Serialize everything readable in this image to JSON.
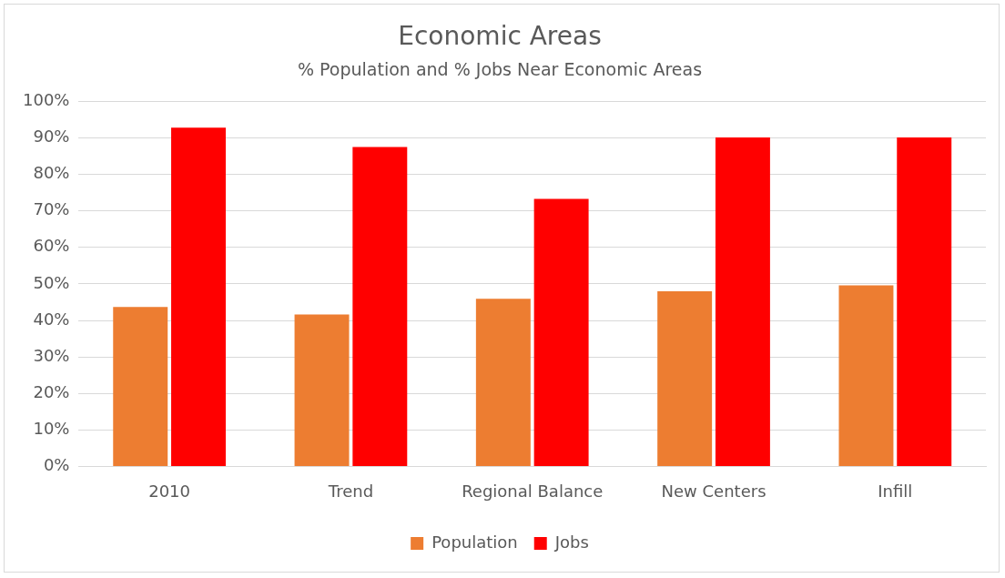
{
  "chart_data": {
    "type": "bar",
    "title": "Economic Areas",
    "subtitle": "% Population and % Jobs Near Economic Areas",
    "categories": [
      "2010",
      "Trend",
      "Regional Balance",
      "New Centers",
      "Infill"
    ],
    "series": [
      {
        "name": "Population",
        "color": "#ed7d31",
        "values": [
          43.7,
          41.6,
          45.9,
          48,
          49.6
        ]
      },
      {
        "name": "Jobs",
        "color": "#ff0000",
        "values": [
          92.8,
          87.5,
          73.3,
          90.1,
          90.1
        ]
      }
    ],
    "ylim": [
      0,
      100
    ],
    "yticks": [
      {
        "value": 0,
        "label": "0%"
      },
      {
        "value": 10,
        "label": "10%"
      },
      {
        "value": 20,
        "label": "20%"
      },
      {
        "value": 30,
        "label": "30%"
      },
      {
        "value": 40,
        "label": "40%"
      },
      {
        "value": 50,
        "label": "50%"
      },
      {
        "value": 60,
        "label": "60%"
      },
      {
        "value": 70,
        "label": "70%"
      },
      {
        "value": 80,
        "label": "80%"
      },
      {
        "value": 90,
        "label": "90%"
      },
      {
        "value": 100,
        "label": "100%"
      }
    ],
    "grid": "y",
    "legend": "bottom"
  }
}
